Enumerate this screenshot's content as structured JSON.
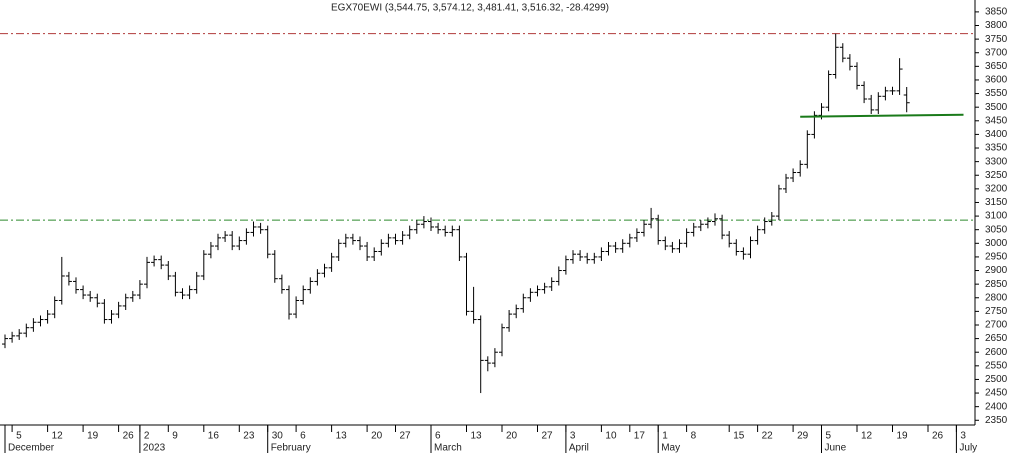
{
  "chart_data": {
    "type": "ohlc",
    "title": "EGX70EWI (3,544.75, 3,574.12, 3,481.41, 3,516.32, -28.4299)",
    "categories": [
      null,
      "5",
      null,
      null,
      null,
      null,
      "12",
      null,
      null,
      null,
      null,
      "19",
      null,
      null,
      null,
      null,
      "26",
      null,
      null,
      "2",
      null,
      null,
      null,
      "9",
      null,
      null,
      null,
      null,
      "16",
      null,
      null,
      null,
      null,
      "23",
      null,
      null,
      null,
      "30",
      null,
      null,
      null,
      "6",
      null,
      null,
      null,
      null,
      "13",
      null,
      null,
      null,
      null,
      "20",
      null,
      null,
      null,
      "27",
      null,
      null,
      null,
      null,
      "6",
      null,
      null,
      null,
      null,
      "13",
      null,
      null,
      null,
      null,
      "20",
      null,
      null,
      null,
      null,
      "27",
      null,
      null,
      null,
      "3",
      null,
      null,
      null,
      null,
      "10",
      null,
      null,
      null,
      "17",
      null,
      null,
      null,
      "1",
      null,
      null,
      null,
      "8",
      null,
      null,
      null,
      null,
      null,
      "15",
      null,
      null,
      null,
      "22",
      null,
      null,
      null,
      null,
      "29",
      null,
      null,
      null,
      "5",
      null,
      null,
      null,
      null,
      "12",
      null,
      null,
      null,
      null,
      "19",
      null,
      null,
      null,
      null,
      "26",
      null,
      null,
      null,
      "3",
      null
    ],
    "months": [
      "December",
      null,
      null,
      null,
      null,
      null,
      null,
      null,
      null,
      null,
      null,
      null,
      null,
      null,
      null,
      null,
      null,
      null,
      null,
      "2023",
      null,
      null,
      null,
      null,
      null,
      null,
      null,
      null,
      null,
      null,
      null,
      null,
      null,
      null,
      null,
      null,
      null,
      "February",
      null,
      null,
      null,
      null,
      null,
      null,
      null,
      null,
      null,
      null,
      null,
      null,
      null,
      null,
      null,
      null,
      null,
      null,
      null,
      null,
      null,
      null,
      "March",
      null,
      null,
      null,
      null,
      null,
      null,
      null,
      null,
      null,
      null,
      null,
      null,
      null,
      null,
      null,
      null,
      null,
      null,
      "April",
      null,
      null,
      null,
      null,
      null,
      null,
      null,
      null,
      null,
      null,
      null,
      null,
      "May",
      null,
      null,
      null,
      null,
      null,
      null,
      null,
      null,
      null,
      null,
      null,
      null,
      null,
      null,
      null,
      null,
      null,
      null,
      null,
      null,
      null,
      null,
      "June",
      null,
      null,
      null,
      null,
      null,
      null,
      null,
      null,
      null,
      null,
      null,
      null,
      null,
      null,
      null,
      null,
      null,
      null,
      "July",
      null
    ],
    "open": [
      2630,
      2650,
      2660,
      2670,
      2690,
      2710,
      2720,
      2740,
      2790,
      2880,
      2860,
      2830,
      2810,
      2800,
      2780,
      2720,
      2740,
      2770,
      2800,
      2810,
      2850,
      2930,
      2940,
      2920,
      2880,
      2820,
      2810,
      2830,
      2880,
      2960,
      2990,
      3020,
      3030,
      2990,
      3010,
      3040,
      3060,
      3050,
      2960,
      2870,
      2830,
      2740,
      2790,
      2830,
      2860,
      2890,
      2910,
      2950,
      3000,
      3020,
      3010,
      2990,
      2950,
      2970,
      3000,
      3020,
      3010,
      3030,
      3050,
      3070,
      3080,
      3060,
      3050,
      3040,
      3050,
      2950,
      2750,
      2720,
      2570,
      2560,
      2600,
      2690,
      2740,
      2760,
      2800,
      2820,
      2830,
      2840,
      2860,
      2900,
      2940,
      2960,
      2950,
      2940,
      2950,
      2970,
      2990,
      2980,
      3000,
      3020,
      3040,
      3070,
      3090,
      3010,
      2990,
      2980,
      3000,
      3040,
      3060,
      3070,
      3080,
      3090,
      3030,
      3000,
      2970,
      2960,
      3010,
      3050,
      3080,
      3100,
      3200,
      3240,
      3260,
      3290,
      3400,
      3470,
      3500,
      3620,
      3720,
      3680,
      3650,
      3580,
      3530,
      3490,
      3540,
      3560,
      3560,
      3544.75,
      null,
      null,
      null,
      null,
      null,
      null,
      null,
      null
    ],
    "high": [
      2665,
      2675,
      2685,
      2705,
      2725,
      2735,
      2755,
      2805,
      2950,
      2895,
      2875,
      2845,
      2825,
      2815,
      2795,
      2755,
      2785,
      2815,
      2825,
      2865,
      2950,
      2955,
      2955,
      2935,
      2895,
      2835,
      2845,
      2895,
      2975,
      3005,
      3035,
      3045,
      3045,
      3025,
      3055,
      3080,
      3075,
      3065,
      2975,
      2885,
      2845,
      2805,
      2845,
      2875,
      2905,
      2925,
      2965,
      3015,
      3035,
      3035,
      3025,
      3005,
      2985,
      3015,
      3035,
      3035,
      3045,
      3065,
      3085,
      3100,
      3095,
      3075,
      3065,
      3065,
      3065,
      2965,
      2840,
      2735,
      2585,
      2615,
      2705,
      2755,
      2775,
      2815,
      2835,
      2845,
      2855,
      2875,
      2915,
      2955,
      2975,
      2975,
      2965,
      2965,
      2985,
      3005,
      3005,
      3015,
      3035,
      3055,
      3085,
      3130,
      3105,
      3025,
      3005,
      3015,
      3055,
      3075,
      3085,
      3095,
      3110,
      3105,
      3045,
      3015,
      2985,
      3025,
      3065,
      3095,
      3115,
      3215,
      3255,
      3275,
      3305,
      3415,
      3485,
      3515,
      3635,
      3770,
      3735,
      3695,
      3665,
      3595,
      3545,
      3555,
      3575,
      3575,
      3680,
      3574.12,
      null,
      null,
      null,
      null,
      null,
      null,
      null,
      null
    ],
    "low": [
      2615,
      2635,
      2645,
      2655,
      2675,
      2695,
      2705,
      2725,
      2775,
      2845,
      2815,
      2795,
      2785,
      2765,
      2705,
      2705,
      2725,
      2755,
      2785,
      2795,
      2835,
      2915,
      2905,
      2865,
      2805,
      2795,
      2795,
      2815,
      2865,
      2945,
      2975,
      3005,
      2975,
      2975,
      2995,
      3025,
      3035,
      2945,
      2855,
      2815,
      2720,
      2725,
      2775,
      2815,
      2845,
      2875,
      2895,
      2935,
      2985,
      2995,
      2975,
      2935,
      2935,
      2955,
      2985,
      2995,
      2995,
      3015,
      3035,
      3055,
      3045,
      3035,
      3025,
      3025,
      2935,
      2735,
      2705,
      2450,
      2530,
      2545,
      2585,
      2675,
      2725,
      2745,
      2785,
      2805,
      2815,
      2825,
      2845,
      2885,
      2925,
      2935,
      2925,
      2925,
      2935,
      2955,
      2965,
      2965,
      2985,
      3005,
      3025,
      3055,
      2995,
      2975,
      2965,
      2965,
      2985,
      3025,
      3045,
      3055,
      3065,
      3015,
      2985,
      2955,
      2940,
      2945,
      2995,
      3035,
      3065,
      3085,
      3185,
      3225,
      3245,
      3275,
      3385,
      3455,
      3485,
      3605,
      3665,
      3635,
      3565,
      3515,
      3475,
      3475,
      3525,
      3545,
      3545,
      3481.41,
      null,
      null,
      null,
      null,
      null,
      null,
      null,
      null
    ],
    "close": [
      2650,
      2660,
      2670,
      2690,
      2710,
      2720,
      2740,
      2790,
      2880,
      2860,
      2830,
      2810,
      2800,
      2780,
      2720,
      2740,
      2770,
      2800,
      2810,
      2850,
      2930,
      2940,
      2920,
      2880,
      2820,
      2810,
      2830,
      2880,
      2960,
      2990,
      3020,
      3030,
      2990,
      3010,
      3040,
      3060,
      3050,
      2960,
      2870,
      2830,
      2740,
      2790,
      2830,
      2860,
      2890,
      2910,
      2950,
      3000,
      3020,
      3010,
      2990,
      2950,
      2970,
      3000,
      3020,
      3010,
      3030,
      3050,
      3070,
      3080,
      3060,
      3050,
      3040,
      3050,
      2950,
      2750,
      2720,
      2570,
      2560,
      2600,
      2690,
      2740,
      2760,
      2800,
      2820,
      2830,
      2840,
      2860,
      2900,
      2940,
      2960,
      2950,
      2940,
      2950,
      2970,
      2990,
      2980,
      3000,
      3020,
      3040,
      3070,
      3090,
      3010,
      2990,
      2980,
      3000,
      3040,
      3060,
      3070,
      3080,
      3090,
      3030,
      3000,
      2970,
      2960,
      3010,
      3050,
      3080,
      3100,
      3200,
      3240,
      3260,
      3290,
      3400,
      3470,
      3500,
      3620,
      3720,
      3680,
      3650,
      3580,
      3530,
      3490,
      3540,
      3560,
      3560,
      3640,
      3516.32,
      null,
      null,
      null,
      null,
      null,
      null,
      null,
      null
    ],
    "color": "#000000",
    "ylim": [
      2340,
      3890
    ],
    "yticks": [
      2350,
      2400,
      2450,
      2500,
      2550,
      2600,
      2650,
      2700,
      2750,
      2800,
      2850,
      2900,
      2950,
      3000,
      3050,
      3100,
      3150,
      3200,
      3250,
      3300,
      3350,
      3400,
      3450,
      3500,
      3550,
      3600,
      3650,
      3700,
      3750,
      3800,
      3850
    ],
    "hlines": [
      {
        "value": 3770,
        "color": "#b03a3a"
      },
      {
        "value": 3085,
        "color": "#2e8b2e"
      }
    ],
    "support_line": {
      "x": [
        112,
        135
      ],
      "values": [
        3465,
        3472
      ],
      "color": "#1a7a1a"
    }
  }
}
